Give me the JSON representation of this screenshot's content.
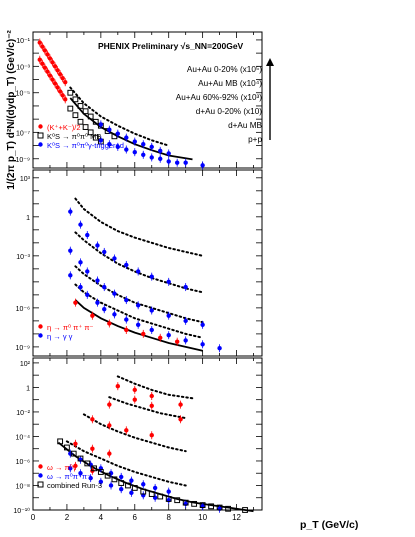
{
  "chart_data": {
    "type": "scatter",
    "xlabel": "p_T (GeV/c)",
    "ylabel": "1/(2π p_T) d²N/(dydp_T) (GeV/c)⁻²",
    "xlim": [
      0,
      13.5
    ],
    "x_ticks": [
      "0",
      "2",
      "4",
      "6",
      "8",
      "10",
      "12"
    ],
    "header": "PHENIX Preliminary √s_NN=200GeV",
    "system_labels": [
      "Au+Au 0-20% (x10⁵)",
      "Au+Au MB (x10⁴)",
      "Au+Au 60%-92% (x10³)",
      "d+Au 0-20% (x10)",
      "d+Au MB",
      "p+p"
    ],
    "panels": [
      {
        "name": "kaons",
        "ylim_log10": [
          -9.7,
          0.6
        ],
        "y_ticks": [
          "10⁻⁹",
          "10⁻⁷",
          "10⁻⁵",
          "10⁻³",
          "10⁻¹"
        ],
        "legend": [
          "(K⁺+K⁻)/2",
          "K⁰S → π⁰π⁰ MB",
          "K⁰S → π⁰π⁰γ-triggered"
        ],
        "series": [
          {
            "name": "(K⁺+K⁻)/2",
            "color": "#ff0000",
            "marker": "circle",
            "x": [
              0.4,
              0.55,
              0.7,
              0.85,
              1.0,
              1.15,
              1.3,
              1.45,
              1.6,
              1.75,
              1.9,
              0.4,
              0.55,
              0.7,
              0.85,
              1.0,
              1.15,
              1.3,
              1.45,
              1.6,
              1.75,
              1.9
            ],
            "log10_y": [
              -0.2,
              -0.5,
              -0.8,
              -1.1,
              -1.4,
              -1.7,
              -2.0,
              -2.3,
              -2.6,
              -2.9,
              -3.2,
              -1.5,
              -1.8,
              -2.1,
              -2.4,
              -2.7,
              -3.0,
              -3.3,
              -3.6,
              -3.9,
              -4.2,
              -4.5
            ]
          },
          {
            "name": "K⁰S → π⁰π⁰ MB",
            "color": "#000000",
            "marker": "open-square",
            "x": [
              2.2,
              2.5,
              2.8,
              3.1,
              3.4,
              3.7,
              4.0,
              4.4,
              4.8,
              2.2,
              2.5,
              2.8,
              3.1,
              3.4,
              3.7,
              4.0
            ],
            "log10_y": [
              -4.0,
              -4.5,
              -5.0,
              -5.4,
              -5.8,
              -6.2,
              -6.5,
              -6.9,
              -7.3,
              -5.2,
              -5.7,
              -6.2,
              -6.6,
              -7.0,
              -7.4,
              -7.7
            ]
          },
          {
            "name": "K⁰S → π⁰π⁰γ-triggered",
            "color": "#0000ff",
            "marker": "circle",
            "x": [
              4.0,
              4.5,
              5.0,
              5.5,
              6.0,
              6.5,
              7.0,
              7.5,
              8.0,
              4.0,
              4.5,
              5.0,
              5.5,
              6.0,
              6.5,
              7.0,
              7.5,
              8.0,
              8.5,
              9.0,
              10.0
            ],
            "log10_y": [
              -6.4,
              -6.8,
              -7.1,
              -7.4,
              -7.7,
              -7.9,
              -8.1,
              -8.4,
              -8.6,
              -7.6,
              -7.9,
              -8.1,
              -8.3,
              -8.5,
              -8.7,
              -8.9,
              -9.0,
              -9.2,
              -9.3,
              -9.3,
              -9.5
            ]
          }
        ],
        "curves": [
          {
            "style": "dotted",
            "x": [
              2.2,
              3,
              4,
              5,
              6,
              7,
              8
            ],
            "log10_y": [
              -3.6,
              -4.8,
              -5.8,
              -6.5,
              -7.1,
              -7.6,
              -8.0
            ]
          },
          {
            "style": "solid",
            "x": [
              2.2,
              3,
              4,
              5,
              6,
              7,
              8,
              9.4
            ],
            "log10_y": [
              -4.4,
              -5.6,
              -6.6,
              -7.3,
              -7.9,
              -8.35,
              -8.75,
              -9.05
            ]
          }
        ]
      },
      {
        "name": "eta",
        "ylim_log10": [
          -9.7,
          4.6
        ],
        "y_ticks": [
          "10⁻⁹",
          "10⁻⁶",
          "10⁻³",
          "1",
          "10³"
        ],
        "legend": [
          "η → π⁰ π⁺ π⁻",
          "η → γ γ"
        ],
        "series": [
          {
            "name": "η → π⁰ π⁺ π⁻",
            "color": "#ff0000",
            "marker": "circle",
            "x": [
              2.5,
              3.5,
              4.5,
              5.5,
              6.5,
              7.5,
              8.5
            ],
            "log10_y": [
              -5.6,
              -6.6,
              -7.2,
              -7.7,
              -8.0,
              -8.3,
              -8.6
            ]
          },
          {
            "name": "η → γ γ",
            "color": "#0000ff",
            "marker": "circle",
            "x": [
              2.2,
              2.8,
              3.2,
              3.8,
              4.2,
              4.8,
              5.5,
              6.2,
              7,
              8,
              9,
              2.2,
              2.8,
              3.2,
              3.8,
              4.2,
              4.8,
              5.5,
              6.2,
              7,
              8,
              9,
              10,
              2.2,
              2.8,
              3.2,
              3.8,
              4.2,
              4.8,
              5.5,
              6.2,
              7,
              8,
              9,
              10,
              11
            ],
            "log10_y": [
              1.4,
              0.4,
              -0.4,
              -1.2,
              -1.7,
              -2.2,
              -2.7,
              -3.2,
              -3.6,
              -4.0,
              -4.4,
              -1.6,
              -2.5,
              -3.2,
              -3.9,
              -4.4,
              -4.9,
              -5.4,
              -5.8,
              -6.2,
              -6.6,
              -7.0,
              -7.3,
              -3.5,
              -4.4,
              -5.0,
              -5.6,
              -6.1,
              -6.5,
              -6.9,
              -7.3,
              -7.7,
              -8.1,
              -8.5,
              -8.8,
              -9.1
            ]
          }
        ],
        "curves": [
          {
            "style": "dotted",
            "x": [
              2.5,
              3,
              4,
              5,
              6,
              7,
              8,
              9,
              10
            ],
            "log10_y": [
              2.4,
              1.6,
              0.6,
              -0.1,
              -0.6,
              -1.0,
              -1.4,
              -1.7,
              -2.0
            ]
          },
          {
            "style": "dotted",
            "x": [
              2.5,
              3,
              4,
              5,
              6,
              7,
              8,
              9,
              10
            ],
            "log10_y": [
              -0.2,
              -0.8,
              -1.8,
              -2.6,
              -3.2,
              -3.7,
              -4.1,
              -4.5,
              -4.8
            ]
          },
          {
            "style": "dotted",
            "x": [
              2.5,
              3,
              4,
              5,
              6,
              7,
              8,
              9,
              10
            ],
            "log10_y": [
              -2.8,
              -3.4,
              -4.3,
              -5.0,
              -5.6,
              -6.0,
              -6.4,
              -6.8,
              -7.1
            ]
          },
          {
            "style": "dotted",
            "x": [
              2.5,
              3,
              4,
              5,
              6,
              7,
              8,
              9,
              10
            ],
            "log10_y": [
              -4.2,
              -4.8,
              -5.6,
              -6.2,
              -6.8,
              -7.2,
              -7.6,
              -8.0,
              -8.3
            ]
          },
          {
            "style": "solid",
            "x": [
              2.5,
              3,
              4,
              5,
              6,
              7,
              8,
              9,
              10
            ],
            "log10_y": [
              -5.4,
              -6.0,
              -6.8,
              -7.4,
              -7.9,
              -8.3,
              -8.7,
              -9.0,
              -9.3
            ]
          }
        ]
      },
      {
        "name": "omega",
        "ylim_log10": [
          -10,
          2.4
        ],
        "y_ticks": [
          "10⁻¹⁰",
          "10⁻⁸",
          "10⁻⁶",
          "10⁻⁴",
          "10⁻²",
          "1",
          "10²"
        ],
        "legend": [
          "ω → π⁰γ",
          "ω → π⁰π⁺π⁻",
          "combined Run-3"
        ],
        "series": [
          {
            "name": "ω → π⁰γ",
            "color": "#ff0000",
            "marker": "circle",
            "x": [
              5,
              6,
              7,
              8.7,
              4.5,
              6.0,
              7.0,
              8.7,
              3.5,
              4.5,
              5.5,
              7,
              2.5,
              3.5,
              4.5,
              2.5,
              3.5
            ],
            "log10_y": [
              0.1,
              -0.2,
              -0.7,
              -1.4,
              -1.4,
              -1.0,
              -1.5,
              -2.6,
              -2.6,
              -3.1,
              -3.5,
              -3.9,
              -4.6,
              -5.0,
              -5.4,
              -6.4,
              -6.8
            ]
          },
          {
            "name": "ω → π⁰π⁺π⁻",
            "color": "#0000ff",
            "marker": "circle",
            "x": [
              2.2,
              2.8,
              3.4,
              4,
              4.6,
              5.2,
              5.8,
              6.5,
              7.2,
              8,
              2.2,
              2.8,
              3.4,
              4,
              4.6,
              5.2,
              5.8,
              6.5,
              7.2,
              8,
              9,
              10,
              11
            ],
            "log10_y": [
              -5.4,
              -5.9,
              -6.3,
              -6.6,
              -7.0,
              -7.3,
              -7.6,
              -7.9,
              -8.2,
              -8.5,
              -6.6,
              -7.0,
              -7.4,
              -7.7,
              -8.0,
              -8.3,
              -8.6,
              -8.8,
              -9.0,
              -9.2,
              -9.5,
              -9.7,
              -9.9
            ]
          },
          {
            "name": "combined Run-3",
            "color": "#000000",
            "marker": "open-square",
            "x": [
              1.6,
              2.0,
              2.4,
              2.8,
              3.2,
              3.6,
              4.0,
              4.4,
              4.8,
              5.2,
              5.6,
              6.0,
              6.5,
              7.0,
              7.5,
              8.0,
              8.5,
              9,
              9.5,
              10,
              10.5,
              11,
              11.5,
              12.5
            ],
            "log10_y": [
              -4.4,
              -4.9,
              -5.4,
              -5.8,
              -6.2,
              -6.6,
              -6.9,
              -7.2,
              -7.5,
              -7.8,
              -8.0,
              -8.2,
              -8.5,
              -8.7,
              -8.9,
              -9.1,
              -9.2,
              -9.4,
              -9.5,
              -9.6,
              -9.7,
              -9.8,
              -9.9,
              -10.0
            ]
          }
        ],
        "curves": [
          {
            "style": "dotted",
            "x": [
              5,
              6,
              7,
              8,
              9.5
            ],
            "log10_y": [
              0.9,
              0.3,
              -0.2,
              -0.6,
              -0.9
            ]
          },
          {
            "style": "dotted",
            "x": [
              4.5,
              5.5,
              6.5,
              7.5,
              9
            ],
            "log10_y": [
              -0.8,
              -1.3,
              -1.7,
              -2.1,
              -2.5
            ]
          },
          {
            "style": "dotted",
            "x": [
              3,
              4,
              5,
              6,
              7,
              8,
              9
            ],
            "log10_y": [
              -2.2,
              -3.0,
              -3.6,
              -4.1,
              -4.5,
              -4.9,
              -5.2
            ]
          },
          {
            "style": "dotted",
            "x": [
              2,
              3,
              4,
              5,
              6,
              7,
              8,
              9
            ],
            "log10_y": [
              -4.4,
              -5.2,
              -5.8,
              -6.4,
              -6.9,
              -7.3,
              -7.7,
              -8.0
            ]
          },
          {
            "style": "solid",
            "x": [
              1.5,
              2.5,
              3.5,
              4.5,
              5.5,
              6.5,
              7.5,
              8.5,
              9.5,
              10.5,
              11.5,
              12.5,
              13
            ],
            "log10_y": [
              -4.5,
              -5.6,
              -6.5,
              -7.2,
              -7.8,
              -8.3,
              -8.7,
              -9.1,
              -9.4,
              -9.6,
              -9.8,
              -10.0,
              -10.1
            ]
          }
        ]
      }
    ]
  }
}
